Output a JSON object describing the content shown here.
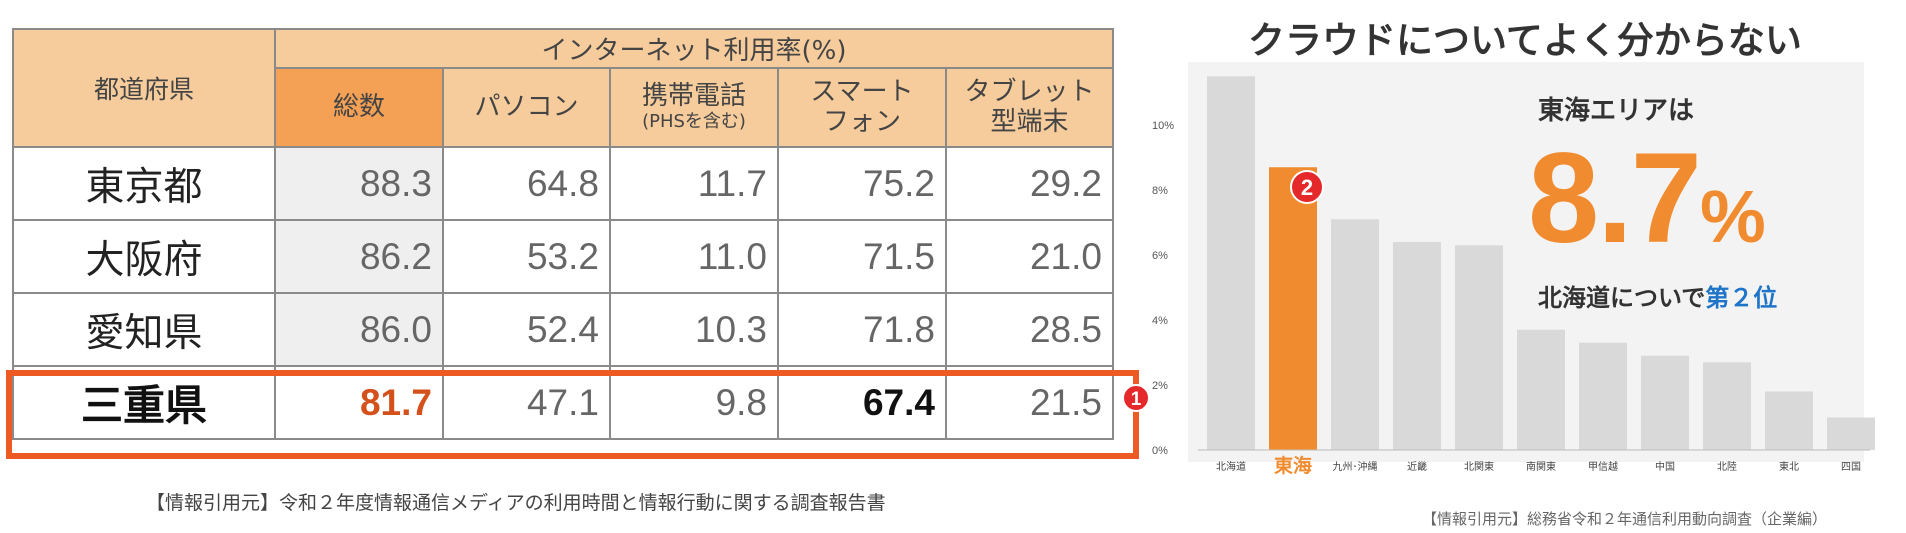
{
  "table": {
    "pref_header": "都道府県",
    "group_header": "インターネット利用率(%)",
    "columns": [
      {
        "label": "総数",
        "sub": ""
      },
      {
        "label": "パソコン",
        "sub": ""
      },
      {
        "label": "携帯電話",
        "sub": "(PHSを含む)"
      },
      {
        "label": "スマート",
        "sub": "フォン"
      },
      {
        "label": "タブレット",
        "sub": "型端末"
      }
    ],
    "rows": [
      {
        "pref": "東京都",
        "values": [
          "88.3",
          "64.8",
          "11.7",
          "75.2",
          "29.2"
        ]
      },
      {
        "pref": "大阪府",
        "values": [
          "86.2",
          "53.2",
          "11.0",
          "71.5",
          "21.0"
        ]
      },
      {
        "pref": "愛知県",
        "values": [
          "86.0",
          "52.4",
          "10.3",
          "71.8",
          "28.5"
        ]
      },
      {
        "pref": "三重県",
        "values": [
          "81.7",
          "47.1",
          "9.8",
          "67.4",
          "21.5"
        ]
      }
    ],
    "badge": "1",
    "source": "【情報引用元】令和２年度情報通信メディアの利用時間と情報行動に関する調査報告書"
  },
  "callout": {
    "title": "東海エリアは",
    "value": "8.7",
    "unit": "%",
    "sub_prefix": "北海道についで",
    "sub_rank": "第２位",
    "badge": "2"
  },
  "source_right": "【情報引用元】総務省令和２年通信利用動向調査（企業編）",
  "colors": {
    "highlight_red": "#ee5a23",
    "accent_orange": "#f08c2f",
    "bar_gray": "#d9d9d9",
    "header_peach": "#f6cc9c",
    "header_orange": "#f4a055",
    "rank_blue": "#1e74c8"
  },
  "chart_data": {
    "type": "bar",
    "title": "クラウドについてよく分からない",
    "categories": [
      "北海道",
      "東海",
      "九州･沖縄",
      "近畿",
      "北関東",
      "南関東",
      "甲信越",
      "中国",
      "北陸",
      "東北",
      "四国"
    ],
    "values": [
      11.5,
      8.7,
      7.1,
      6.4,
      6.3,
      3.7,
      3.3,
      2.9,
      2.7,
      1.8,
      1.0
    ],
    "highlight_index": 1,
    "ylim": [
      0,
      12
    ],
    "yticks": [
      0,
      2,
      4,
      6,
      8,
      10
    ],
    "ytick_labels": [
      "0%",
      "2%",
      "4%",
      "6%",
      "8%",
      "10%"
    ],
    "xlabel": "",
    "ylabel": ""
  }
}
